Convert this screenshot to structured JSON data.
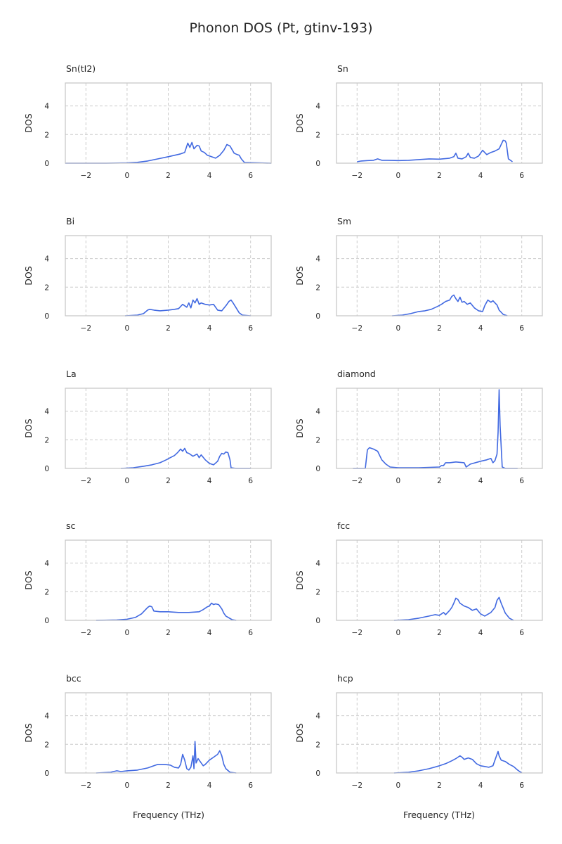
{
  "title": "Phonon DOS (Pt, gtinv-193)",
  "colors": {
    "line": "#4169e1",
    "grid": "#cccccc",
    "frame": "#c8c8c8",
    "text": "#262626"
  },
  "chart_data": [
    {
      "type": "line",
      "title": "Sn(tI2)",
      "xlabel": "",
      "ylabel": "DOS",
      "xlim": [
        -3,
        7
      ],
      "ylim": [
        0,
        5.6
      ],
      "xticks": [
        -2,
        0,
        2,
        4,
        6
      ],
      "yticks": [
        0,
        2,
        4
      ],
      "grid": true,
      "x": [
        -3.0,
        -1.0,
        0.0,
        0.5,
        1.0,
        1.5,
        2.0,
        2.3,
        2.6,
        2.8,
        2.95,
        3.05,
        3.15,
        3.25,
        3.4,
        3.5,
        3.6,
        3.75,
        3.9,
        4.1,
        4.3,
        4.5,
        4.7,
        4.85,
        5.0,
        5.2,
        5.35,
        5.45,
        5.55,
        5.7,
        7.0
      ],
      "y": [
        0.0,
        0.0,
        0.02,
        0.06,
        0.15,
        0.3,
        0.45,
        0.55,
        0.65,
        0.75,
        1.4,
        1.1,
        1.45,
        1.0,
        1.25,
        1.2,
        0.85,
        0.75,
        0.55,
        0.45,
        0.35,
        0.55,
        0.9,
        1.3,
        1.2,
        0.7,
        0.6,
        0.55,
        0.3,
        0.05,
        0.0
      ]
    },
    {
      "type": "line",
      "title": "Sn",
      "xlabel": "",
      "ylabel": "DOS",
      "xlim": [
        -3,
        7
      ],
      "ylim": [
        0,
        5.6
      ],
      "xticks": [
        -2,
        0,
        2,
        4,
        6
      ],
      "yticks": [
        0,
        2,
        4
      ],
      "grid": true,
      "x": [
        -2.0,
        -1.8,
        -1.5,
        -1.2,
        -1.0,
        -0.8,
        -0.5,
        0.0,
        0.5,
        1.0,
        1.5,
        2.0,
        2.5,
        2.7,
        2.8,
        2.9,
        3.1,
        3.3,
        3.4,
        3.5,
        3.7,
        3.9,
        4.1,
        4.3,
        4.5,
        4.7,
        4.9,
        5.0,
        5.1,
        5.2,
        5.25,
        5.35,
        5.45,
        5.55
      ],
      "y": [
        0.1,
        0.15,
        0.18,
        0.2,
        0.3,
        0.2,
        0.2,
        0.18,
        0.2,
        0.25,
        0.3,
        0.28,
        0.35,
        0.45,
        0.7,
        0.35,
        0.3,
        0.45,
        0.7,
        0.4,
        0.35,
        0.5,
        0.9,
        0.6,
        0.75,
        0.85,
        1.0,
        1.3,
        1.6,
        1.55,
        1.4,
        0.3,
        0.2,
        0.1
      ]
    },
    {
      "type": "line",
      "title": "Bi",
      "xlabel": "",
      "ylabel": "DOS",
      "xlim": [
        -3,
        7
      ],
      "ylim": [
        0,
        5.6
      ],
      "xticks": [
        -2,
        0,
        2,
        4,
        6
      ],
      "yticks": [
        0,
        2,
        4
      ],
      "grid": true,
      "x": [
        -0.1,
        0.5,
        0.8,
        1.0,
        1.1,
        1.3,
        1.6,
        2.0,
        2.3,
        2.5,
        2.7,
        2.9,
        3.0,
        3.1,
        3.2,
        3.3,
        3.4,
        3.5,
        3.6,
        3.8,
        4.0,
        4.2,
        4.4,
        4.6,
        4.8,
        4.95,
        5.05,
        5.15,
        5.3,
        5.45,
        5.6,
        6.0
      ],
      "y": [
        0.0,
        0.05,
        0.15,
        0.4,
        0.45,
        0.4,
        0.35,
        0.4,
        0.45,
        0.5,
        0.8,
        0.6,
        0.9,
        0.55,
        1.1,
        0.9,
        1.2,
        0.8,
        0.9,
        0.8,
        0.75,
        0.8,
        0.4,
        0.35,
        0.7,
        1.0,
        1.1,
        0.9,
        0.55,
        0.2,
        0.05,
        0.0
      ]
    },
    {
      "type": "line",
      "title": "Sm",
      "xlabel": "",
      "ylabel": "DOS",
      "xlim": [
        -3,
        7
      ],
      "ylim": [
        0,
        5.6
      ],
      "xticks": [
        -2,
        0,
        2,
        4,
        6
      ],
      "yticks": [
        0,
        2,
        4
      ],
      "grid": true,
      "x": [
        -0.3,
        0.2,
        0.6,
        1.0,
        1.3,
        1.6,
        1.9,
        2.1,
        2.3,
        2.5,
        2.6,
        2.7,
        2.8,
        2.9,
        3.0,
        3.1,
        3.2,
        3.35,
        3.5,
        3.7,
        3.9,
        4.1,
        4.2,
        4.35,
        4.5,
        4.6,
        4.7,
        4.8,
        4.9,
        5.1,
        5.3
      ],
      "y": [
        0.0,
        0.05,
        0.15,
        0.3,
        0.35,
        0.45,
        0.65,
        0.8,
        1.0,
        1.1,
        1.35,
        1.45,
        1.2,
        1.0,
        1.3,
        0.95,
        1.0,
        0.8,
        0.9,
        0.55,
        0.35,
        0.3,
        0.7,
        1.1,
        0.95,
        1.05,
        0.9,
        0.75,
        0.4,
        0.1,
        0.0
      ]
    },
    {
      "type": "line",
      "title": "La",
      "xlabel": "",
      "ylabel": "DOS",
      "xlim": [
        -3,
        7
      ],
      "ylim": [
        0,
        5.6
      ],
      "xticks": [
        -2,
        0,
        2,
        4,
        6
      ],
      "yticks": [
        0,
        2,
        4
      ],
      "grid": true,
      "x": [
        -0.3,
        0.3,
        0.8,
        1.2,
        1.6,
        1.9,
        2.1,
        2.3,
        2.45,
        2.6,
        2.7,
        2.8,
        2.9,
        3.0,
        3.2,
        3.4,
        3.5,
        3.6,
        3.8,
        4.0,
        4.2,
        4.4,
        4.5,
        4.6,
        4.7,
        4.8,
        4.9,
        5.0,
        5.05,
        5.3,
        6.0
      ],
      "y": [
        0.0,
        0.05,
        0.15,
        0.25,
        0.4,
        0.6,
        0.75,
        0.9,
        1.1,
        1.35,
        1.2,
        1.4,
        1.1,
        1.05,
        0.85,
        1.0,
        0.75,
        0.95,
        0.6,
        0.35,
        0.25,
        0.5,
        0.85,
        1.05,
        1.0,
        1.15,
        1.1,
        0.6,
        0.05,
        0.0,
        0.0
      ]
    },
    {
      "type": "line",
      "title": "diamond",
      "xlabel": "",
      "ylabel": "DOS",
      "xlim": [
        -3,
        7
      ],
      "ylim": [
        0,
        5.6
      ],
      "xticks": [
        -2,
        0,
        2,
        4,
        6
      ],
      "yticks": [
        0,
        2,
        4
      ],
      "grid": true,
      "x": [
        -2.2,
        -1.6,
        -1.5,
        -1.4,
        -1.2,
        -1.0,
        -0.9,
        -0.8,
        -0.6,
        -0.4,
        0.0,
        1.0,
        2.0,
        2.1,
        2.2,
        2.3,
        2.5,
        2.8,
        3.2,
        3.3,
        3.5,
        4.0,
        4.3,
        4.5,
        4.6,
        4.7,
        4.8,
        4.85,
        4.9,
        4.95,
        5.05,
        5.2,
        5.8
      ],
      "y": [
        0.0,
        0.0,
        1.3,
        1.45,
        1.35,
        1.2,
        0.9,
        0.6,
        0.3,
        0.1,
        0.05,
        0.05,
        0.1,
        0.2,
        0.2,
        0.4,
        0.4,
        0.45,
        0.4,
        0.1,
        0.3,
        0.5,
        0.6,
        0.7,
        0.4,
        0.55,
        1.0,
        2.5,
        5.5,
        3.0,
        0.1,
        0.0,
        0.0
      ]
    },
    {
      "type": "line",
      "title": "sc",
      "xlabel": "",
      "ylabel": "DOS",
      "xlim": [
        -3,
        7
      ],
      "ylim": [
        0,
        5.6
      ],
      "xticks": [
        -2,
        0,
        2,
        4,
        6
      ],
      "yticks": [
        0,
        2,
        4
      ],
      "grid": true,
      "x": [
        -1.5,
        -0.5,
        0.0,
        0.4,
        0.7,
        0.9,
        1.0,
        1.1,
        1.2,
        1.3,
        1.6,
        2.0,
        2.5,
        3.0,
        3.5,
        3.7,
        3.9,
        4.0,
        4.1,
        4.2,
        4.3,
        4.45,
        4.6,
        4.7,
        4.8,
        5.1,
        5.3
      ],
      "y": [
        0.0,
        0.03,
        0.08,
        0.2,
        0.45,
        0.75,
        0.9,
        1.0,
        0.95,
        0.65,
        0.6,
        0.6,
        0.55,
        0.55,
        0.6,
        0.75,
        0.95,
        1.0,
        1.2,
        1.1,
        1.15,
        1.1,
        0.8,
        0.5,
        0.3,
        0.05,
        0.0
      ]
    },
    {
      "type": "line",
      "title": "fcc",
      "xlabel": "",
      "ylabel": "DOS",
      "xlim": [
        -3,
        7
      ],
      "ylim": [
        0,
        5.6
      ],
      "xticks": [
        -2,
        0,
        2,
        4,
        6
      ],
      "yticks": [
        0,
        2,
        4
      ],
      "grid": true,
      "x": [
        -0.2,
        0.5,
        1.0,
        1.5,
        1.8,
        2.0,
        2.2,
        2.3,
        2.5,
        2.6,
        2.7,
        2.8,
        2.9,
        3.0,
        3.2,
        3.4,
        3.6,
        3.8,
        4.0,
        4.2,
        4.5,
        4.7,
        4.8,
        4.9,
        5.0,
        5.2,
        5.4,
        5.6
      ],
      "y": [
        0.0,
        0.05,
        0.15,
        0.3,
        0.4,
        0.35,
        0.55,
        0.4,
        0.7,
        0.9,
        1.2,
        1.55,
        1.45,
        1.2,
        1.0,
        0.9,
        0.7,
        0.8,
        0.45,
        0.3,
        0.55,
        0.9,
        1.4,
        1.6,
        1.2,
        0.5,
        0.15,
        0.0
      ]
    },
    {
      "type": "line",
      "title": "bcc",
      "xlabel": "",
      "ylabel": "DOS",
      "xlim": [
        -3,
        7
      ],
      "ylim": [
        0,
        5.6
      ],
      "xticks": [
        -2,
        0,
        2,
        4,
        6
      ],
      "yticks": [
        0,
        2,
        4
      ],
      "grid": true,
      "x": [
        -1.5,
        -0.8,
        -0.5,
        -0.3,
        0.0,
        0.5,
        1.0,
        1.3,
        1.5,
        1.8,
        2.1,
        2.3,
        2.5,
        2.6,
        2.7,
        2.8,
        2.9,
        3.0,
        3.1,
        3.2,
        3.25,
        3.3,
        3.35,
        3.45,
        3.6,
        3.7,
        3.8,
        4.0,
        4.2,
        4.4,
        4.5,
        4.6,
        4.7,
        4.8,
        5.0,
        5.3
      ],
      "y": [
        0.0,
        0.05,
        0.15,
        0.1,
        0.15,
        0.2,
        0.35,
        0.5,
        0.6,
        0.6,
        0.55,
        0.4,
        0.35,
        0.6,
        1.3,
        0.9,
        0.3,
        0.2,
        0.4,
        1.2,
        0.3,
        2.2,
        0.7,
        1.0,
        0.7,
        0.5,
        0.6,
        0.9,
        1.1,
        1.3,
        1.55,
        1.2,
        0.6,
        0.3,
        0.05,
        0.0
      ]
    },
    {
      "type": "line",
      "title": "hcp",
      "xlabel": "",
      "ylabel": "DOS",
      "xlim": [
        -3,
        7
      ],
      "ylim": [
        0,
        5.6
      ],
      "xticks": [
        -2,
        0,
        2,
        4,
        6
      ],
      "yticks": [
        0,
        2,
        4
      ],
      "grid": true,
      "x": [
        -0.2,
        0.5,
        1.0,
        1.5,
        2.0,
        2.3,
        2.6,
        2.8,
        3.0,
        3.1,
        3.2,
        3.4,
        3.6,
        3.8,
        4.0,
        4.2,
        4.4,
        4.6,
        4.7,
        4.8,
        4.85,
        4.9,
        5.0,
        5.2,
        5.4,
        5.6,
        5.8,
        6.0
      ],
      "y": [
        0.0,
        0.05,
        0.15,
        0.3,
        0.5,
        0.65,
        0.85,
        1.0,
        1.2,
        1.1,
        0.95,
        1.05,
        0.95,
        0.65,
        0.5,
        0.45,
        0.4,
        0.5,
        0.9,
        1.3,
        1.5,
        1.2,
        0.9,
        0.8,
        0.6,
        0.45,
        0.2,
        0.0
      ]
    }
  ],
  "x_axis_label": "Frequency (THz)"
}
